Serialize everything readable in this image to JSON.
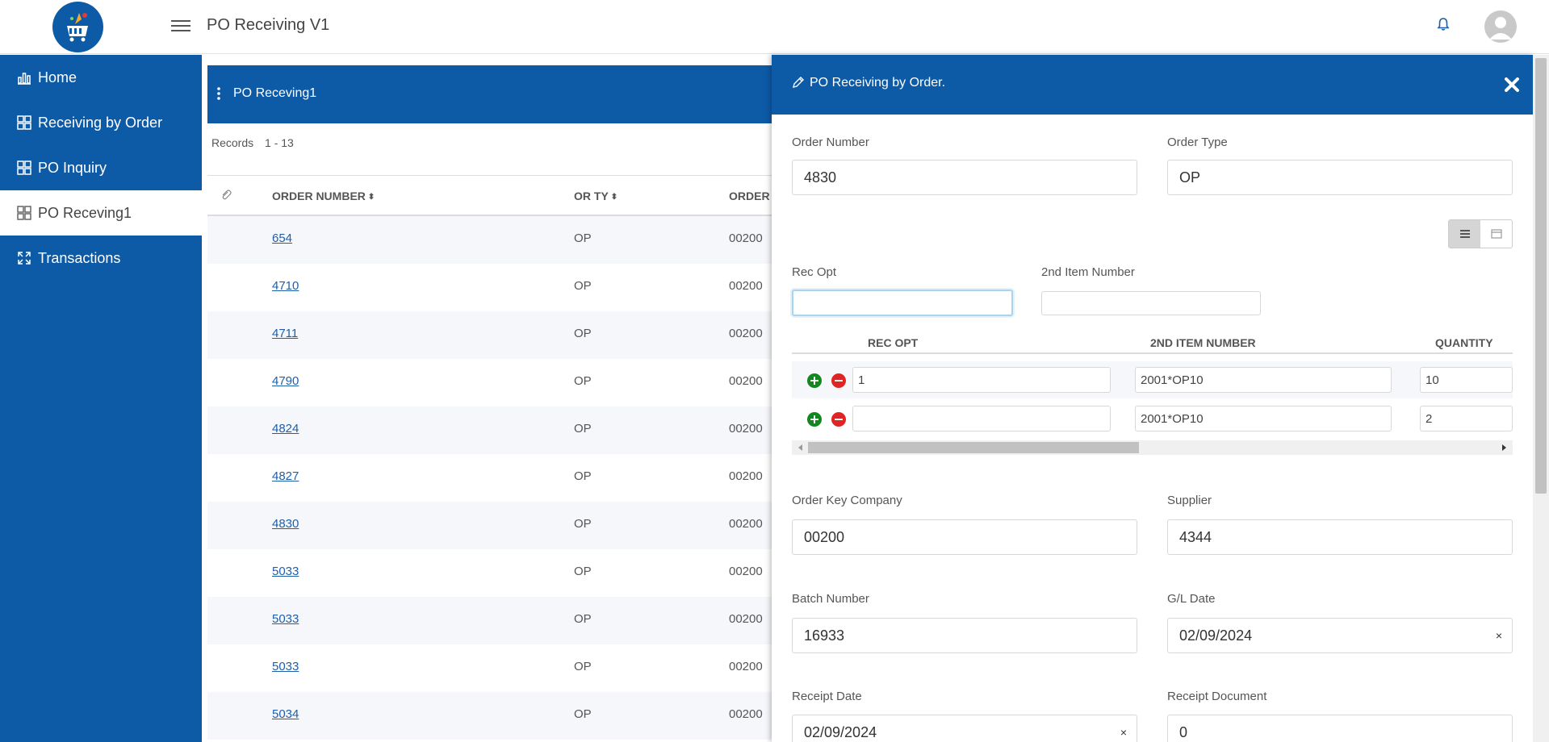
{
  "app": {
    "title": "PO Receiving V1"
  },
  "sidebar": {
    "items": [
      {
        "label": "Home",
        "icon": "bar-chart-icon",
        "active": false
      },
      {
        "label": "Receiving by Order",
        "icon": "grid-icon",
        "active": false
      },
      {
        "label": "PO Inquiry",
        "icon": "grid-icon",
        "active": false
      },
      {
        "label": "PO Receving1",
        "icon": "grid-icon",
        "active": true
      },
      {
        "label": "Transactions",
        "icon": "expand-icon",
        "active": false
      }
    ]
  },
  "list": {
    "title": "PO Receving1",
    "records_label": "Records",
    "records_range": "1 - 13",
    "columns": {
      "order_number": "ORDER NUMBER",
      "or_ty": "OR TY",
      "order_co": "ORDER"
    },
    "rows": [
      {
        "order": "654",
        "ty": "OP",
        "co": "00200"
      },
      {
        "order": "4710",
        "ty": "OP",
        "co": "00200"
      },
      {
        "order": "4711",
        "ty": "OP",
        "co": "00200"
      },
      {
        "order": "4790",
        "ty": "OP",
        "co": "00200"
      },
      {
        "order": "4824",
        "ty": "OP",
        "co": "00200"
      },
      {
        "order": "4827",
        "ty": "OP",
        "co": "00200"
      },
      {
        "order": "4830",
        "ty": "OP",
        "co": "00200"
      },
      {
        "order": "5033",
        "ty": "OP",
        "co": "00200"
      },
      {
        "order": "5033",
        "ty": "OP",
        "co": "00200"
      },
      {
        "order": "5033",
        "ty": "OP",
        "co": "00200"
      },
      {
        "order": "5034",
        "ty": "OP",
        "co": "00200"
      }
    ]
  },
  "drawer": {
    "title": "PO Receiving by Order.",
    "order_number": {
      "label": "Order Number",
      "value": "4830"
    },
    "order_type": {
      "label": "Order Type",
      "value": "OP"
    },
    "rec_opt": {
      "label": "Rec Opt",
      "value": ""
    },
    "second_item": {
      "label": "2nd Item Number",
      "value": ""
    },
    "grid": {
      "columns": {
        "rec_opt": "REC OPT",
        "item": "2ND ITEM NUMBER",
        "qty": "QUANTITY"
      },
      "rows": [
        {
          "rec_opt": "1",
          "item": "2001*OP10",
          "qty": "10"
        },
        {
          "rec_opt": "",
          "item": "2001*OP10",
          "qty": "2"
        }
      ]
    },
    "order_key_company": {
      "label": "Order Key Company",
      "value": "00200"
    },
    "supplier": {
      "label": "Supplier",
      "value": "4344"
    },
    "batch_number": {
      "label": "Batch Number",
      "value": "16933"
    },
    "gl_date": {
      "label": "G/L Date",
      "value": "02/09/2024"
    },
    "receipt_date": {
      "label": "Receipt Date",
      "value": "02/09/2024"
    },
    "receipt_document": {
      "label": "Receipt Document",
      "value": "0"
    },
    "clear_glyph": "×"
  },
  "colors": {
    "brand": "#0d5aa7",
    "add": "#13871f",
    "remove": "#e02424"
  }
}
